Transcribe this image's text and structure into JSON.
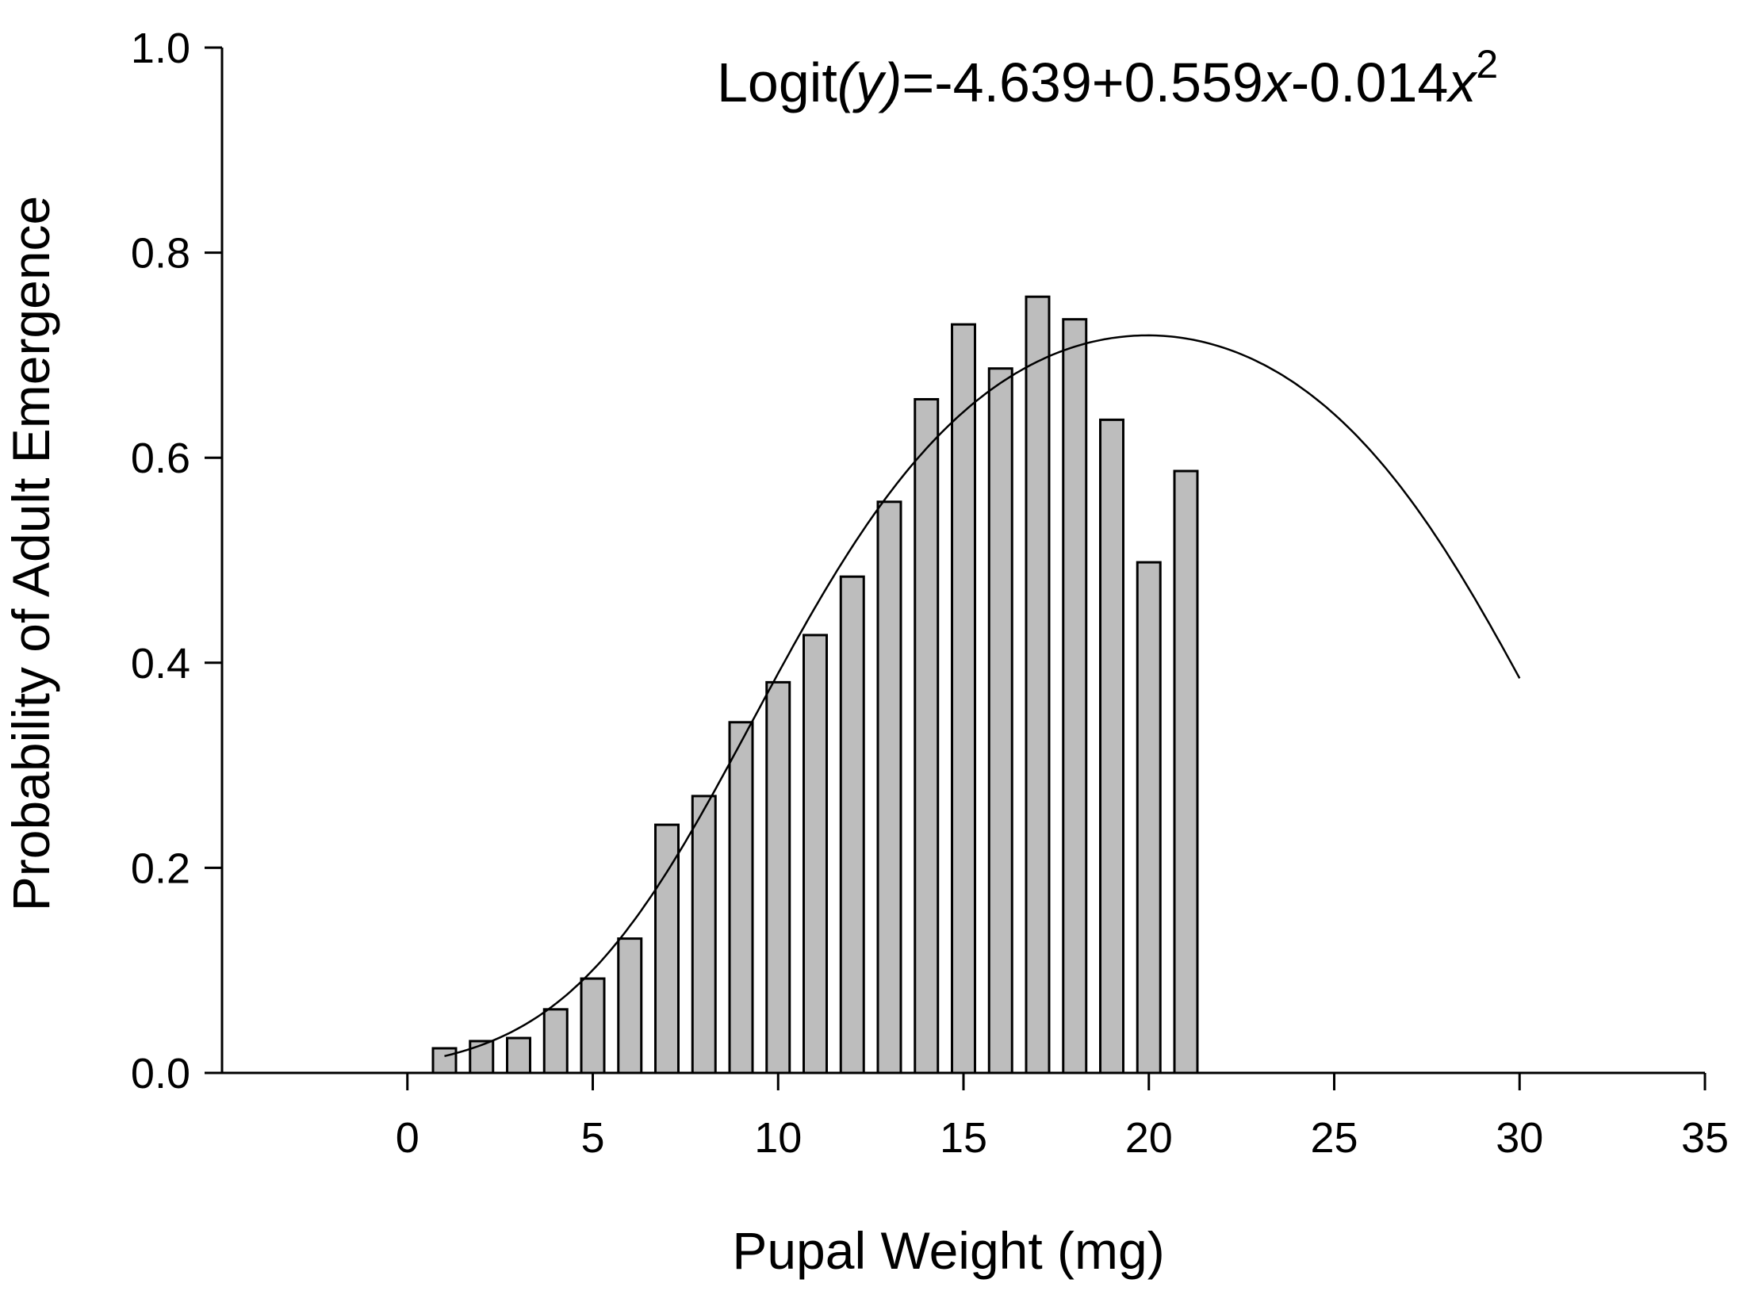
{
  "chart_data": {
    "type": "bar",
    "xlabel": "Pupal Weight (mg)",
    "ylabel": "Probability of Adult Emergence",
    "annotation": {
      "prefix": "Logit",
      "var_y": "(y)",
      "mid1": "=-4.639+0.559",
      "var_x1": "x",
      "mid2": "-0.014",
      "var_x2": "x",
      "sup": "2"
    },
    "xlim": [
      -5,
      35
    ],
    "ylim": [
      0,
      1.0
    ],
    "x_ticks": [
      0,
      5,
      10,
      15,
      20,
      25,
      30,
      35
    ],
    "x_tick_labels": [
      "0",
      "5",
      "10",
      "15",
      "20",
      "25",
      "30",
      "35"
    ],
    "y_ticks": [
      0.0,
      0.2,
      0.4,
      0.6,
      0.8,
      1.0
    ],
    "y_tick_labels": [
      "0.0",
      "0.2",
      "0.4",
      "0.6",
      "0.8",
      "1.0"
    ],
    "bars": {
      "x": [
        1,
        2,
        3,
        4,
        5,
        6,
        7,
        8,
        9,
        10,
        11,
        12,
        13,
        14,
        15,
        16,
        17,
        18,
        19,
        20,
        21
      ],
      "values": [
        0.024,
        0.031,
        0.034,
        0.062,
        0.092,
        0.131,
        0.242,
        0.27,
        0.342,
        0.381,
        0.427,
        0.484,
        0.557,
        0.657,
        0.73,
        0.687,
        0.757,
        0.735,
        0.637,
        0.498,
        0.587
      ],
      "color": "#bdbdbd"
    },
    "curve": {
      "model": "logit",
      "coefficients": [
        -4.639,
        0.559,
        -0.014
      ],
      "x_range": [
        1,
        30
      ]
    },
    "grid": false,
    "legend": "none"
  }
}
